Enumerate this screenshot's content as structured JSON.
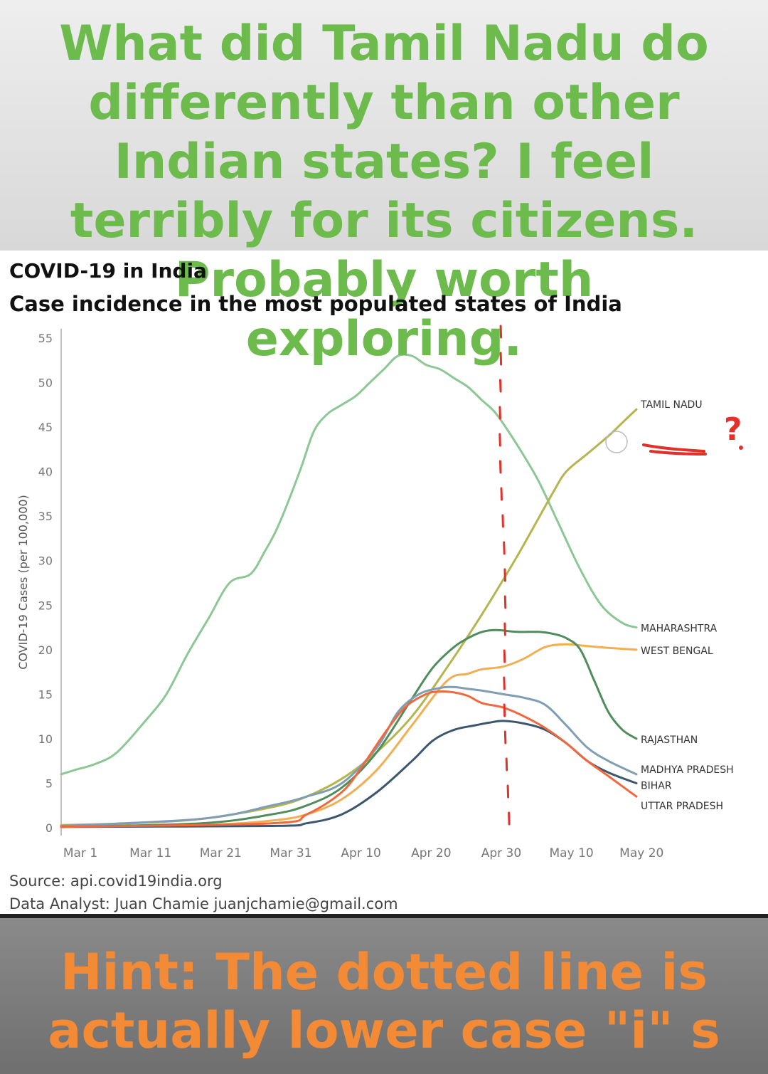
{
  "top_caption": "What did Tamil Nadu do differently than other Indian states? I feel terribly for its citizens. Probably worth exploring.",
  "bottom_caption": "Hint: The dotted line is actually lower case \"i\" s",
  "source": "Source: api.covid19india.org",
  "analyst": "Data Analyst: Juan Chamie juanjchamie@gmail.com",
  "colors": {
    "caption_green": "#6cbb4c",
    "caption_orange": "#f28a36",
    "annotation_red": "#e0312b"
  },
  "chart_data": {
    "type": "line",
    "title": "COVID-19 in India",
    "subtitle": "Case incidence in the most populated states of India",
    "ylabel": "COVID-19 Cases (per 100,000)",
    "xlabel": "",
    "ylim": [
      0,
      55
    ],
    "xlim": [
      0,
      82
    ],
    "x_unit": "days since Mar 1",
    "y_ticks": [
      0,
      5,
      10,
      15,
      20,
      25,
      30,
      35,
      40,
      45,
      50,
      55
    ],
    "x_ticks": [
      {
        "day": 0,
        "label": "Mar 1"
      },
      {
        "day": 10,
        "label": "Mar 11"
      },
      {
        "day": 20,
        "label": "Mar 21"
      },
      {
        "day": 30,
        "label": "Mar 31"
      },
      {
        "day": 40,
        "label": "Apr 10"
      },
      {
        "day": 50,
        "label": "Apr 20"
      },
      {
        "day": 60,
        "label": "Apr 30"
      },
      {
        "day": 70,
        "label": "May 10"
      },
      {
        "day": 80,
        "label": "May 20"
      }
    ],
    "series": [
      {
        "name": "MAHARASHTRA",
        "color": "#8cc795",
        "x": [
          0,
          2,
          5,
          8,
          12,
          15,
          18,
          21,
          24,
          27,
          29,
          31,
          34,
          36,
          38,
          40,
          42,
          44,
          46,
          48,
          50,
          52,
          54,
          56,
          58,
          60,
          62,
          65,
          68,
          71,
          74,
          77,
          80,
          82
        ],
        "y": [
          6.0,
          6.5,
          7.2,
          8.5,
          12,
          15,
          19.5,
          23.5,
          27.5,
          28.5,
          31,
          34,
          40,
          44.5,
          46.5,
          47.5,
          48.5,
          50,
          51.5,
          53,
          53,
          52,
          51.5,
          50.5,
          49.5,
          48,
          46.5,
          43,
          39,
          34,
          29,
          25,
          23,
          22.5
        ]
      },
      {
        "name": "TAMIL NADU",
        "color": "#b5b54e",
        "x": [
          0,
          10,
          20,
          30,
          35,
          40,
          45,
          50,
          55,
          60,
          65,
          70,
          72,
          75,
          78,
          80,
          82
        ],
        "y": [
          0.3,
          0.5,
          1.0,
          2.3,
          3.5,
          5.5,
          8.5,
          12.5,
          18,
          24,
          30.5,
          37.5,
          40,
          42,
          44,
          45.5,
          47
        ]
      },
      {
        "name": "WEST BENGAL",
        "color": "#f4ae52",
        "x": [
          0,
          20,
          30,
          35,
          40,
          45,
          50,
          55,
          58,
          60,
          63,
          66,
          69,
          72,
          75,
          78,
          82
        ],
        "y": [
          0.1,
          0.3,
          0.8,
          1.5,
          3.2,
          6.5,
          11.5,
          16.5,
          17.3,
          17.8,
          18.1,
          19,
          20.3,
          20.6,
          20.4,
          20.2,
          20
        ]
      },
      {
        "name": "RAJASTHAN",
        "color": "#508c5c",
        "x": [
          0,
          20,
          30,
          35,
          40,
          45,
          50,
          53,
          56,
          58,
          60,
          62,
          65,
          68,
          70,
          72,
          74,
          76,
          78,
          80,
          82
        ],
        "y": [
          0.1,
          0.5,
          1.5,
          2.5,
          4.5,
          8.5,
          14.5,
          18,
          20.3,
          21.3,
          22,
          22.2,
          22,
          22,
          21.8,
          21.3,
          20,
          16.5,
          13,
          11,
          10
        ]
      },
      {
        "name": "MADHYA PRADESH",
        "color": "#7f9eb3",
        "x": [
          0,
          20,
          30,
          35,
          40,
          45,
          48,
          51,
          54,
          56,
          58,
          60,
          63,
          66,
          69,
          72,
          75,
          78,
          82
        ],
        "y": [
          0.2,
          1.0,
          2.5,
          3.5,
          5.0,
          9.0,
          13,
          15,
          15.7,
          15.8,
          15.6,
          15.4,
          15,
          14.6,
          13.8,
          11.5,
          9,
          7.5,
          6
        ]
      },
      {
        "name": "BIHAR",
        "color": "#3c5670",
        "x": [
          0,
          30,
          35,
          40,
          45,
          50,
          53,
          56,
          59,
          61,
          63,
          66,
          69,
          72,
          75,
          78,
          82
        ],
        "y": [
          0.1,
          0.2,
          0.5,
          1.5,
          4.0,
          7.5,
          9.8,
          11,
          11.5,
          11.8,
          12,
          11.7,
          11,
          9.5,
          7.5,
          6.2,
          5
        ]
      },
      {
        "name": "UTTAR PRADESH",
        "color": "#f0683e",
        "x": [
          0,
          30,
          35,
          40,
          43,
          46,
          49,
          52,
          54,
          56,
          58,
          60,
          63,
          66,
          69,
          72,
          75,
          78,
          82
        ],
        "y": [
          0.1,
          0.5,
          1.5,
          4.0,
          7,
          10.5,
          13.5,
          15,
          15.3,
          15.2,
          14.8,
          14,
          13.5,
          12.5,
          11.2,
          9.5,
          7.5,
          5.8,
          3.5
        ]
      }
    ],
    "annotations": {
      "vertical_marker_day": 62.5,
      "mark": "?"
    }
  }
}
